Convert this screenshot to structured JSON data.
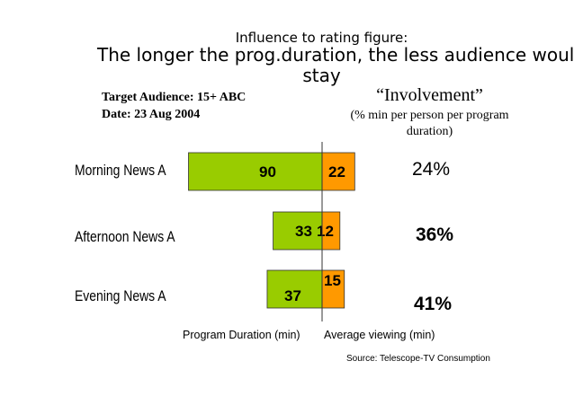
{
  "title": {
    "line1": "Influence to rating figure:",
    "line2": "The longer the prog.duration, the less audience woul",
    "line3": "stay"
  },
  "meta": {
    "audience": "Target Audience: 15+ ABC",
    "date": "Date: 23 Aug 2004"
  },
  "involvement": {
    "title": "“Involvement”",
    "desc1": "(% min per person per program",
    "desc2": "duration)"
  },
  "axis_labels": {
    "left": "Program Duration (min)",
    "right": "Average viewing (min)"
  },
  "source": "Source: Telescope-TV Consumption",
  "colors": {
    "duration": "#99cc00",
    "viewing": "#ff9900",
    "divider": "#333333"
  },
  "chart_data": {
    "type": "bar",
    "orientation": "horizontal-diverging",
    "title": "Influence to rating figure: The longer the prog.duration, the less audience woul stay",
    "categories": [
      "Morning News A",
      "Afternoon News A",
      "Evening News A"
    ],
    "series": [
      {
        "name": "Program Duration (min)",
        "values": [
          90,
          33,
          37
        ],
        "direction": "left"
      },
      {
        "name": "Average viewing (min)",
        "values": [
          22,
          12,
          15
        ],
        "direction": "right"
      }
    ],
    "involvement": [
      "24%",
      "36%",
      "41%"
    ],
    "xlabel_left": "Program Duration (min)",
    "xlabel_right": "Average viewing (min)"
  }
}
